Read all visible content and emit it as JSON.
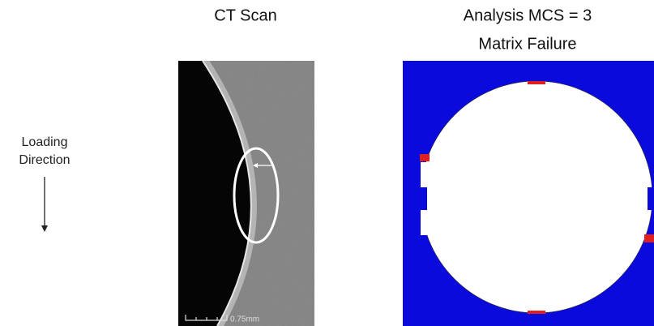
{
  "loading_label": {
    "line1": "Loading",
    "line2": "Direction"
  },
  "ct_panel": {
    "title": "CT Scan",
    "scale_bar": "0.75mm"
  },
  "analysis_panel": {
    "title": "Analysis MCS = 3",
    "subtitle": "Matrix Failure"
  }
}
